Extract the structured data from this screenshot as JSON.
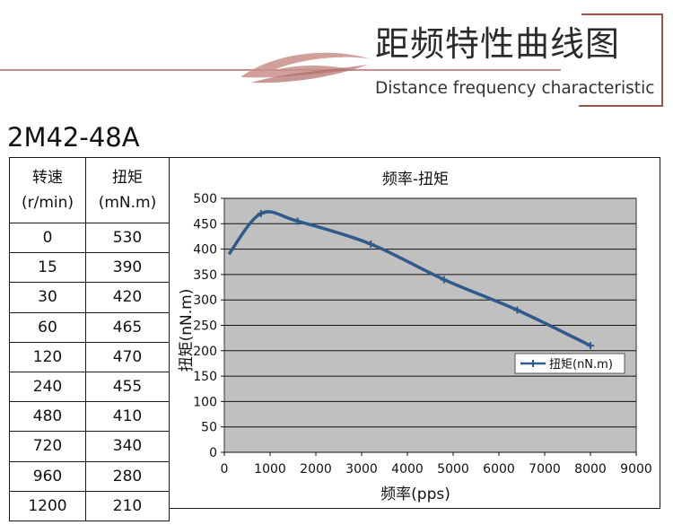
{
  "banner": {
    "title": "距频特性曲线图",
    "subtitle": "Distance frequency characteristic"
  },
  "model": "2M42-48A",
  "table": {
    "headers": [
      {
        "line1": "转速",
        "line2": "(r/min)"
      },
      {
        "line1": "扭矩",
        "line2": "(mN.m)"
      }
    ],
    "rows": [
      [
        "0",
        "530"
      ],
      [
        "15",
        "390"
      ],
      [
        "30",
        "420"
      ],
      [
        "60",
        "465"
      ],
      [
        "120",
        "470"
      ],
      [
        "240",
        "455"
      ],
      [
        "480",
        "410"
      ],
      [
        "720",
        "340"
      ],
      [
        "960",
        "280"
      ],
      [
        "1200",
        "210"
      ]
    ]
  },
  "chart_data": {
    "type": "line",
    "title": "频率-扭矩",
    "xlabel": "频率(pps)",
    "ylabel": "扭矩(nN.m)",
    "xlim": [
      0,
      9000
    ],
    "ylim": [
      0,
      500
    ],
    "xticks": [
      0,
      1000,
      2000,
      3000,
      4000,
      5000,
      6000,
      7000,
      8000,
      9000
    ],
    "yticks": [
      0,
      50,
      100,
      150,
      200,
      250,
      300,
      350,
      400,
      450,
      500
    ],
    "grid": true,
    "legend": "right",
    "series": [
      {
        "name": "扭矩(nN.m)",
        "color": "#2f5a8c",
        "x": [
          100,
          800,
          1600,
          3200,
          4800,
          6400,
          8000
        ],
        "y": [
          390,
          470,
          455,
          410,
          340,
          280,
          210
        ]
      }
    ],
    "plot_background": "#c0c0c0"
  },
  "colors": {
    "banner_swoosh": "#c98f8a",
    "banner_line": "#c98f8a",
    "banner_frame": "#a0524d"
  }
}
